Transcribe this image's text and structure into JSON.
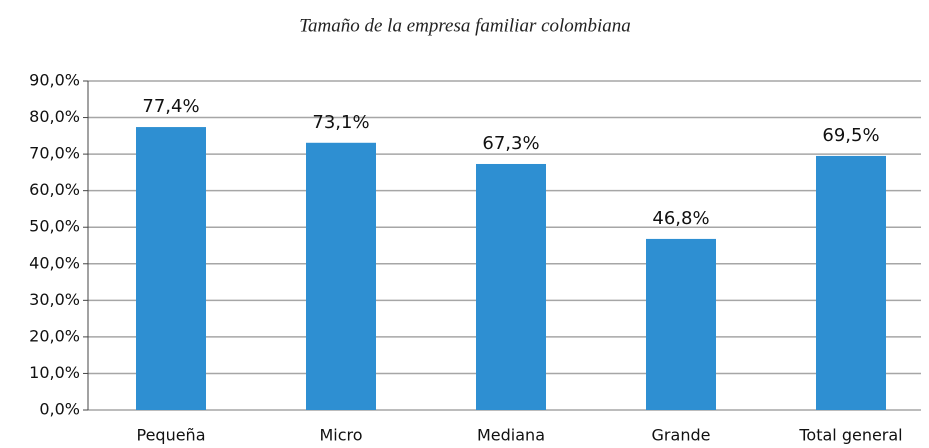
{
  "chart_data": {
    "type": "bar",
    "title": "Tamaño de la empresa familiar colombiana",
    "categories": [
      "Pequeña",
      "Micro",
      "Mediana",
      "Grande",
      "Total general"
    ],
    "values": [
      77.4,
      73.1,
      67.3,
      46.8,
      69.5
    ],
    "value_labels": [
      "77,4%",
      "73,1%",
      "67,3%",
      "46,8%",
      "69,5%"
    ],
    "color": "#2e8fd2",
    "ylim": [
      0,
      90
    ],
    "yticks": [
      {
        "value": 0,
        "label": "0,0%"
      },
      {
        "value": 10,
        "label": "10,0%"
      },
      {
        "value": 20,
        "label": "20,0%"
      },
      {
        "value": 30,
        "label": "30,0%"
      },
      {
        "value": 40,
        "label": "40,0%"
      },
      {
        "value": 50,
        "label": "50,0%"
      },
      {
        "value": 60,
        "label": "60,0%"
      },
      {
        "value": 70,
        "label": "70,0%"
      },
      {
        "value": 80,
        "label": "80,0%"
      },
      {
        "value": 90,
        "label": "90,0%"
      }
    ],
    "grid": true
  }
}
